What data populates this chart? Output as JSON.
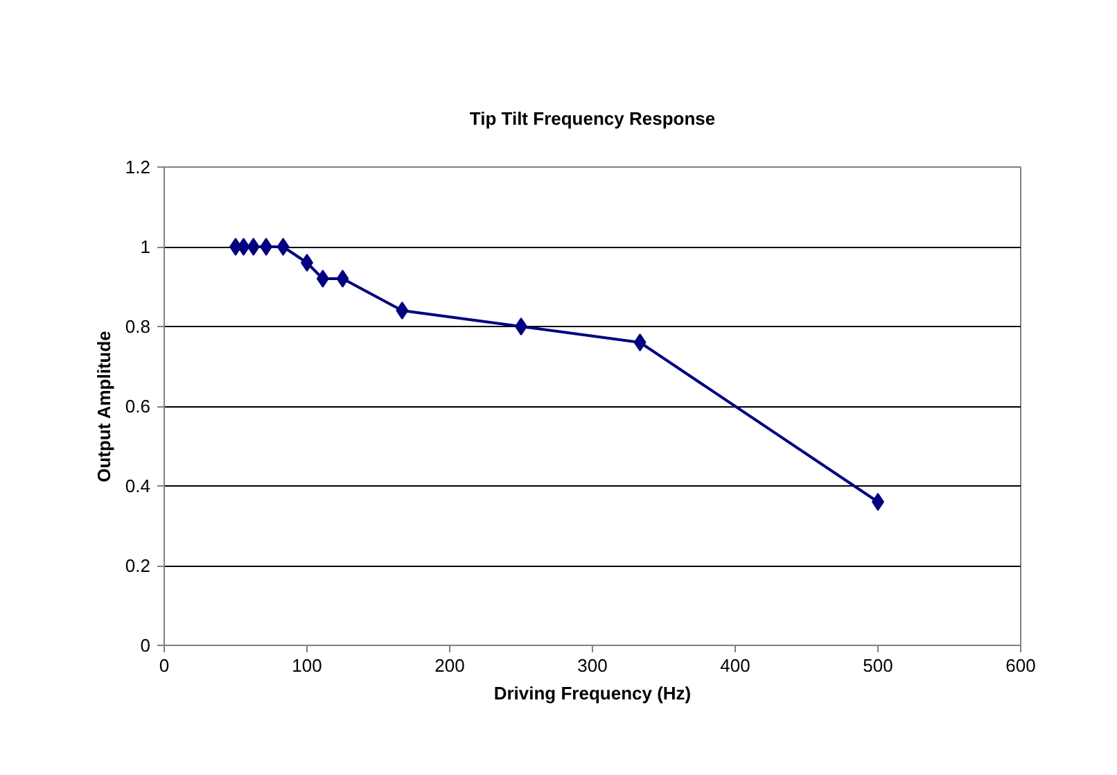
{
  "chart_data": {
    "type": "line",
    "title": "Tip Tilt Frequency Response",
    "xlabel": "Driving Frequency (Hz)",
    "ylabel": "Output Amplitude",
    "x": [
      50,
      55.6,
      62.5,
      71.4,
      83.3,
      100,
      111.1,
      125,
      166.7,
      250,
      333.3,
      500
    ],
    "series": [
      {
        "color": "#000080",
        "values": [
          1,
          1,
          1,
          1,
          1,
          0.96,
          0.92,
          0.92,
          0.84,
          0.8,
          0.76,
          0.36
        ]
      }
    ],
    "xlim": [
      0,
      600
    ],
    "xticks": [
      0,
      100,
      200,
      300,
      400,
      500,
      600
    ],
    "ylim": [
      0,
      1.2
    ],
    "yticks": [
      0,
      0.2,
      0.4,
      0.6,
      0.8,
      1,
      1.2
    ],
    "grid": "y",
    "marker": "diamond",
    "line_style": "solid"
  }
}
